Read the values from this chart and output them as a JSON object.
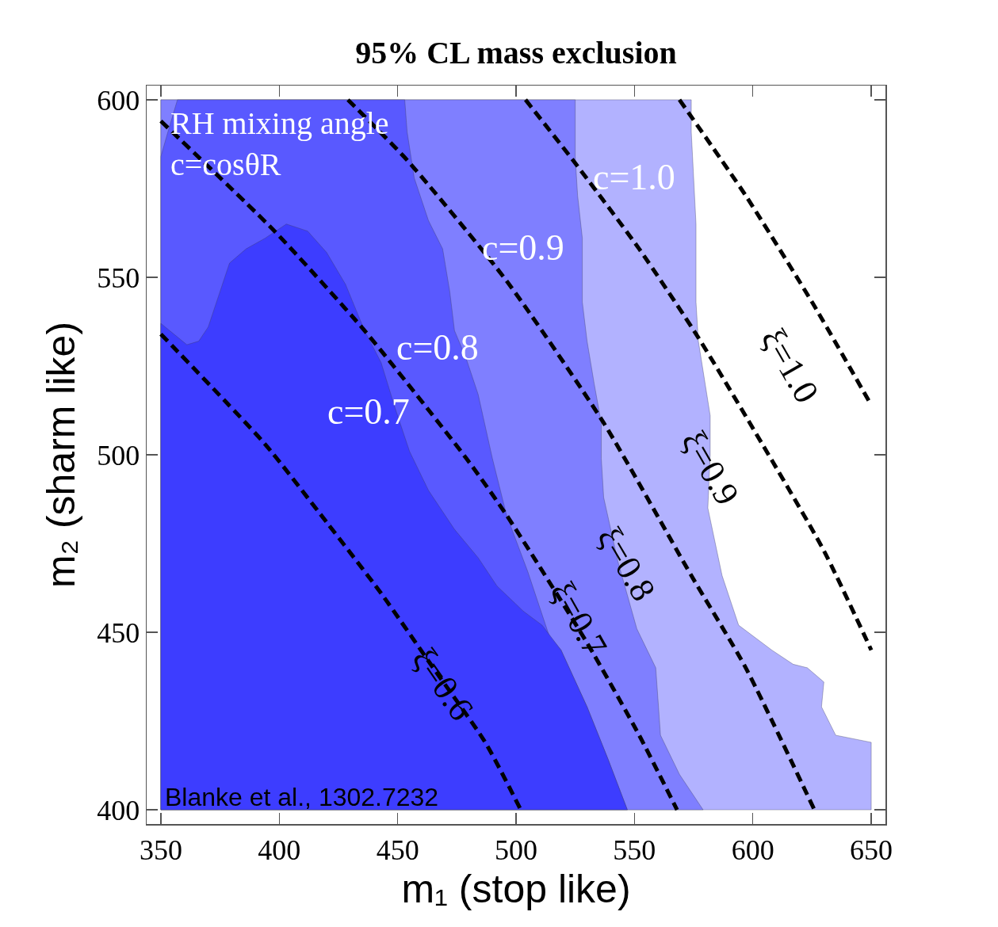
{
  "chart_data": {
    "type": "area",
    "title": "95% CL mass exclusion",
    "xlabel": "m₁ (stop like)",
    "ylabel": "m₂ (sharm like)",
    "xlim": [
      344,
      656
    ],
    "ylim": [
      396,
      604
    ],
    "xticks": [
      350,
      400,
      450,
      500,
      550,
      600,
      650
    ],
    "yticks": [
      400,
      450,
      500,
      550,
      600
    ],
    "grid": false,
    "legend": false,
    "series": [
      {
        "name": "c=1.0",
        "color": "#b2b2ff",
        "x": [
          350,
          350,
          574,
          574,
          576,
          576,
          577,
          582,
          582,
          581,
          587,
          594,
          608,
          617,
          623,
          630,
          629,
          635,
          650,
          650,
          350
        ],
        "values": [
          400,
          600,
          600,
          591,
          565,
          543,
          532,
          511,
          500,
          485,
          466,
          452,
          445,
          441,
          440,
          436,
          429,
          421,
          419,
          400,
          400
        ]
      },
      {
        "name": "c=0.9",
        "color": "#7f7fff",
        "x": [
          350,
          350,
          525,
          525,
          526,
          528,
          528,
          530,
          533,
          536,
          536,
          537,
          543,
          551,
          559,
          561,
          569,
          579,
          350
        ],
        "values": [
          400,
          600,
          600,
          584,
          573,
          561,
          543,
          532,
          520,
          509,
          499,
          488,
          470,
          451,
          440,
          421,
          410,
          400,
          400
        ]
      },
      {
        "name": "c=0.8",
        "color": "#5959ff",
        "x": [
          350,
          350,
          353,
          357,
          453,
          454,
          457,
          463,
          469,
          472,
          474,
          479,
          484,
          490,
          496,
          505,
          507,
          514,
          519,
          530,
          539,
          547,
          350
        ],
        "values": [
          400,
          584,
          591,
          600,
          600,
          591,
          578,
          566,
          558,
          546,
          535,
          527,
          517,
          499,
          483,
          467,
          463,
          449,
          445,
          429,
          414,
          400,
          400
        ]
      },
      {
        "name": "c=0.7",
        "color": "#3d3dff",
        "x": [
          350,
          350,
          361,
          366,
          370,
          375,
          379,
          386,
          394,
          403,
          412,
          420,
          428,
          436,
          443,
          449,
          455,
          463,
          474,
          484,
          492,
          503,
          511,
          519,
          530,
          539,
          547,
          350
        ],
        "values": [
          400,
          537,
          531,
          532,
          536,
          546,
          554,
          558,
          561,
          565,
          563,
          557,
          548,
          535,
          526,
          513,
          501,
          490,
          479,
          471,
          463,
          456,
          452,
          445,
          429,
          414,
          400,
          400
        ]
      },
      {
        "type": "line",
        "name": "ξ=0.6",
        "color": "#000000",
        "line_style": "dashed",
        "x": [
          350,
          394,
          420,
          443,
          465,
          487,
          502
        ],
        "values": [
          534,
          503,
          481,
          461,
          440,
          419,
          400
        ]
      },
      {
        "type": "line",
        "name": "ξ=0.7",
        "color": "#000000",
        "line_style": "dashed",
        "x": [
          350,
          398,
          436,
          479,
          496,
          530,
          552,
          568
        ],
        "values": [
          594,
          563,
          535,
          499,
          483,
          447,
          421,
          400
        ]
      },
      {
        "type": "line",
        "name": "ξ=0.8",
        "color": "#000000",
        "line_style": "dashed",
        "x": [
          429,
          454,
          496,
          537,
          574,
          597,
          626
        ],
        "values": [
          600,
          583,
          549,
          509,
          466,
          440,
          400
        ]
      },
      {
        "type": "line",
        "name": "ξ=0.9",
        "color": "#000000",
        "line_style": "dashed",
        "x": [
          504,
          524,
          552,
          577,
          604,
          630,
          650
        ],
        "values": [
          600,
          583,
          558,
          533,
          503,
          473,
          445
        ]
      },
      {
        "type": "line",
        "name": "ξ=1.0",
        "color": "#000000",
        "line_style": "dashed",
        "x": [
          569,
          597,
          625,
          650
        ],
        "values": [
          600,
          573,
          543,
          514
        ]
      }
    ],
    "annotations": [
      "RH mixing angle\nc=cosθR",
      "Blanke et al., 1302.7232"
    ]
  }
}
